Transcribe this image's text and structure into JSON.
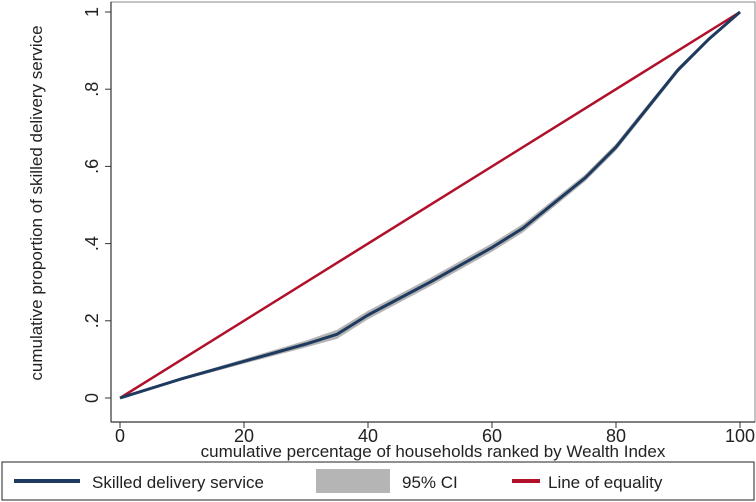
{
  "colors": {
    "lorenz": "#1f3a5f",
    "ci": "#b5b5b5",
    "equality": "#b0102a",
    "axis": "#333333",
    "frame": "#888888"
  },
  "chart_data": {
    "type": "line",
    "title": "",
    "xlabel": "cumulative percentage of households ranked by Wealth Index",
    "ylabel": "cumulative proportion of skilled delivery service",
    "xlim": [
      0,
      100
    ],
    "ylim": [
      0,
      1
    ],
    "x_ticks": [
      0,
      20,
      40,
      60,
      80,
      100
    ],
    "y_ticks": [
      0,
      0.2,
      0.4,
      0.6,
      0.8,
      1
    ],
    "x_tick_labels": [
      "0",
      "20",
      "40",
      "60",
      "80",
      "100"
    ],
    "y_tick_labels": [
      "0",
      ".2",
      ".4",
      ".6",
      ".8",
      "1"
    ],
    "grid": false,
    "legend_position": "bottom",
    "series": [
      {
        "name": "Skilled delivery service",
        "x": [
          0,
          10,
          20,
          30,
          35,
          40,
          50,
          60,
          65,
          70,
          75,
          80,
          85,
          90,
          95,
          100
        ],
        "y": [
          0,
          0.05,
          0.095,
          0.14,
          0.165,
          0.215,
          0.3,
          0.39,
          0.44,
          0.505,
          0.57,
          0.65,
          0.75,
          0.85,
          0.93,
          1.0
        ]
      },
      {
        "name": "95% CI",
        "x": [
          0,
          10,
          20,
          30,
          35,
          40,
          50,
          60,
          65,
          70,
          75,
          80,
          85,
          90,
          95,
          100
        ],
        "lower": [
          0,
          0.046,
          0.089,
          0.131,
          0.153,
          0.204,
          0.289,
          0.379,
          0.429,
          0.495,
          0.561,
          0.641,
          0.742,
          0.843,
          0.925,
          1.0
        ],
        "upper": [
          0,
          0.054,
          0.101,
          0.149,
          0.177,
          0.226,
          0.311,
          0.401,
          0.451,
          0.515,
          0.579,
          0.659,
          0.758,
          0.857,
          0.935,
          1.0
        ]
      },
      {
        "name": "Line of equality",
        "x": [
          0,
          100
        ],
        "y": [
          0,
          1
        ]
      }
    ]
  }
}
